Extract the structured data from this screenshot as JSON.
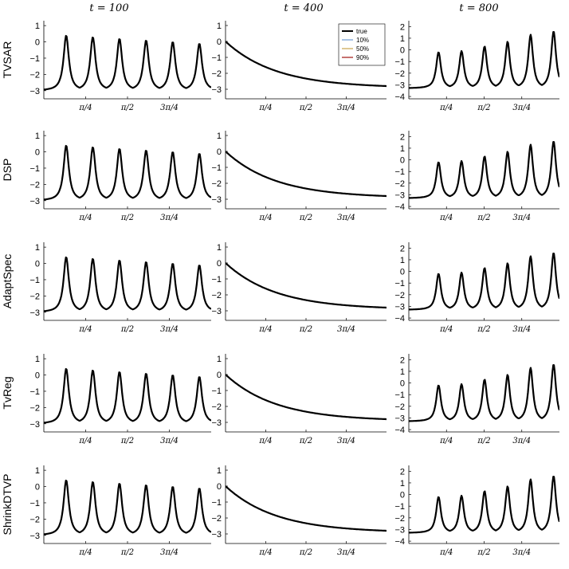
{
  "figure": {
    "column_titles": [
      "t = 100",
      "t = 400",
      "t = 800"
    ],
    "row_labels": [
      "TVSAR",
      "DSP",
      "AdaptSpec",
      "TvReg",
      "ShrinkDTVP"
    ],
    "legend": [
      {
        "label": "true",
        "color": "#000000"
      },
      {
        "label": "10%",
        "color": "#6e9bd4"
      },
      {
        "label": "50%",
        "color": "#c8a44d"
      },
      {
        "label": "90%",
        "color": "#a0140f"
      }
    ]
  },
  "chart_data": {
    "type": "line",
    "layout": "grid 5 rows x 3 columns",
    "xlabel": "",
    "ylabel": "",
    "x_range": [
      0,
      3.1416
    ],
    "x_ticks": [
      {
        "value": 0.7854,
        "label": "π/4"
      },
      {
        "value": 1.5708,
        "label": "π/2"
      },
      {
        "value": 2.3562,
        "label": "3π/4"
      }
    ],
    "columns": [
      {
        "title": "t = 100",
        "ylim": [
          -3.5,
          1.3
        ],
        "yticks": [
          1,
          0,
          -1,
          -2,
          -3
        ],
        "true_curve": {
          "kind": "peaks",
          "n_peaks": 6,
          "first_peak": 0.42,
          "spacing": 0.5,
          "peak_height": [
            0.4,
            0.3,
            0.2,
            0.1,
            0.0,
            -0.1
          ],
          "trough": -3.0
        }
      },
      {
        "title": "t = 400",
        "ylim": [
          -3.6,
          1.3
        ],
        "yticks": [
          1,
          0,
          -1,
          -2,
          -3
        ],
        "true_curve": {
          "kind": "decay",
          "start": 0.0,
          "end": -2.8
        }
      },
      {
        "title": "t = 800",
        "ylim": [
          -4.2,
          2.5
        ],
        "yticks": [
          2,
          1,
          0,
          -1,
          -2,
          -3,
          -4
        ],
        "true_curve": {
          "kind": "peaks",
          "n_peaks": 6,
          "first_peak": 0.62,
          "spacing": 0.48,
          "peak_height": [
            -0.2,
            -0.1,
            0.3,
            0.7,
            1.3,
            1.6
          ],
          "trough": -3.3
        }
      }
    ],
    "series": [
      "true",
      "10%",
      "50%",
      "90%"
    ]
  }
}
